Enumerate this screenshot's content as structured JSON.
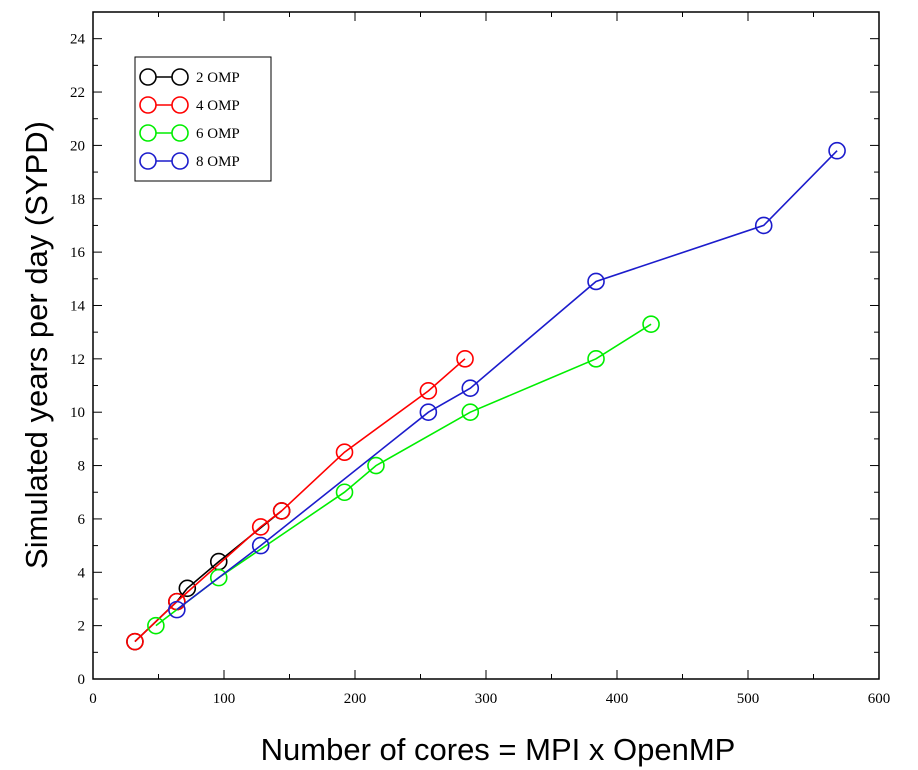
{
  "chart_data": {
    "type": "line",
    "xlabel": "Number of cores = MPI x OpenMP",
    "ylabel": "Simulated years per day (SYPD)",
    "xlim": [
      0,
      600
    ],
    "ylim": [
      0,
      25
    ],
    "x_ticks": [
      "0",
      "100",
      "200",
      "300",
      "400",
      "500",
      "600"
    ],
    "y_ticks": [
      "0",
      "2",
      "4",
      "6",
      "8",
      "10",
      "12",
      "14",
      "16",
      "18",
      "20",
      "22",
      "24"
    ],
    "grid": false,
    "legend_position": "top-left",
    "series": [
      {
        "name": "2 OMP",
        "color": "#000000",
        "x": [
          32,
          64,
          72,
          96,
          144
        ],
        "y": [
          1.4,
          2.9,
          3.4,
          4.4,
          6.3
        ]
      },
      {
        "name": "4 OMP",
        "color": "#ff0000",
        "x": [
          32,
          64,
          128,
          144,
          192,
          256,
          284
        ],
        "y": [
          1.4,
          2.9,
          5.7,
          6.3,
          8.5,
          10.8,
          12.0
        ]
      },
      {
        "name": "6 OMP",
        "color": "#00ee00",
        "x": [
          48,
          96,
          192,
          216,
          288,
          384,
          426
        ],
        "y": [
          2.0,
          3.8,
          7.0,
          8.0,
          10.0,
          12.0,
          13.3
        ]
      },
      {
        "name": "8 OMP",
        "color": "#1c1ccc",
        "x": [
          64,
          128,
          256,
          288,
          384,
          512,
          568
        ],
        "y": [
          2.6,
          5.0,
          10.0,
          10.9,
          14.9,
          17.0,
          19.8
        ]
      }
    ]
  }
}
